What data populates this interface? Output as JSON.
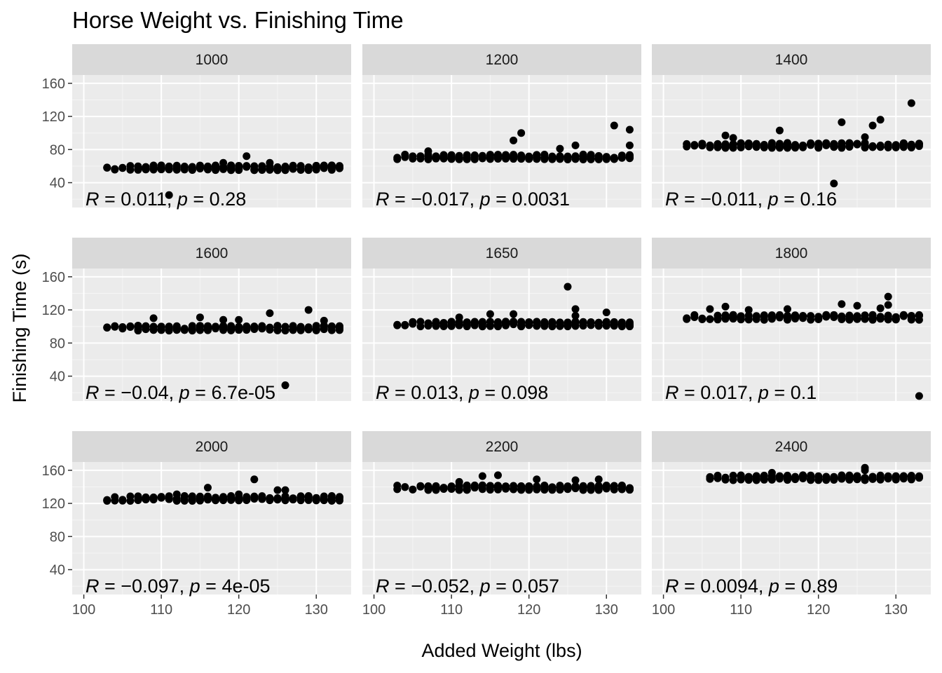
{
  "chart_data": {
    "type": "scatter",
    "title": "Horse Weight vs. Finishing Time",
    "xlabel": "Added Weight (lbs)",
    "ylabel": "Finishing Time (s)",
    "xlim": [
      98.5,
      134.5
    ],
    "ylim": [
      10,
      170
    ],
    "x_ticks": [
      100,
      110,
      120,
      130
    ],
    "y_ticks": [
      40,
      80,
      120,
      160
    ],
    "grid": true,
    "facet_layout": "3x3 grid, one panel per race distance",
    "point_color": "#000000",
    "panel_background": "#ebebeb",
    "strip_background": "#d9d9d9",
    "panels": [
      {
        "label": "1000",
        "baseline": 57,
        "x_range": [
          103,
          133
        ],
        "annotation": {
          "r": "0.011",
          "p": "0.28"
        },
        "outliers": [
          [
            111,
            25
          ],
          [
            118,
            64
          ],
          [
            121,
            72
          ],
          [
            124,
            64
          ]
        ]
      },
      {
        "label": "1200",
        "baseline": 70,
        "x_range": [
          103,
          133
        ],
        "annotation": {
          "r": "−0.017",
          "p": "0.0031"
        },
        "outliers": [
          [
            107,
            78
          ],
          [
            118,
            91
          ],
          [
            119,
            100
          ],
          [
            124,
            81
          ],
          [
            126,
            85
          ],
          [
            131,
            109
          ],
          [
            133,
            104
          ],
          [
            133,
            85
          ]
        ]
      },
      {
        "label": "1400",
        "baseline": 84,
        "x_range": [
          103,
          133
        ],
        "annotation": {
          "r": "−0.011",
          "p": "0.16"
        },
        "outliers": [
          [
            108,
            97
          ],
          [
            109,
            94
          ],
          [
            115,
            103
          ],
          [
            122,
            39
          ],
          [
            123,
            113
          ],
          [
            127,
            109
          ],
          [
            128,
            116
          ],
          [
            132,
            136
          ],
          [
            126,
            95
          ]
        ]
      },
      {
        "label": "1600",
        "baseline": 97,
        "x_range": [
          103,
          133
        ],
        "annotation": {
          "r": "−0.04",
          "p": "6.7e-05"
        },
        "outliers": [
          [
            109,
            110
          ],
          [
            115,
            111
          ],
          [
            118,
            108
          ],
          [
            120,
            108
          ],
          [
            124,
            116
          ],
          [
            126,
            29
          ],
          [
            129,
            120
          ],
          [
            131,
            107
          ]
        ]
      },
      {
        "label": "1650",
        "baseline": 102,
        "x_range": [
          103,
          133
        ],
        "annotation": {
          "r": "0.013",
          "p": "0.098"
        },
        "outliers": [
          [
            111,
            111
          ],
          [
            115,
            115
          ],
          [
            118,
            115
          ],
          [
            125,
            148
          ],
          [
            126,
            121
          ],
          [
            130,
            117
          ],
          [
            126,
            113
          ]
        ]
      },
      {
        "label": "1800",
        "baseline": 110,
        "x_range": [
          103,
          133
        ],
        "annotation": {
          "r": "0.017",
          "p": "0.1"
        },
        "outliers": [
          [
            106,
            121
          ],
          [
            108,
            124
          ],
          [
            111,
            120
          ],
          [
            116,
            121
          ],
          [
            123,
            127
          ],
          [
            125,
            125
          ],
          [
            129,
            136
          ],
          [
            129,
            126
          ],
          [
            133,
            16
          ],
          [
            128,
            122
          ]
        ]
      },
      {
        "label": "2000",
        "baseline": 125,
        "x_range": [
          103,
          133
        ],
        "annotation": {
          "r": "−0.097",
          "p": "4e-05"
        },
        "outliers": [
          [
            103,
            123
          ],
          [
            116,
            139
          ],
          [
            122,
            149
          ],
          [
            120,
            131
          ],
          [
            125,
            136
          ],
          [
            126,
            136
          ],
          [
            112,
            131
          ]
        ]
      },
      {
        "label": "2200",
        "baseline": 138,
        "x_range": [
          103,
          133
        ],
        "annotation": {
          "r": "−0.052",
          "p": "0.057"
        },
        "outliers": [
          [
            114,
            153
          ],
          [
            116,
            154
          ],
          [
            121,
            149
          ],
          [
            126,
            148
          ],
          [
            129,
            149
          ],
          [
            111,
            146
          ]
        ]
      },
      {
        "label": "2400",
        "baseline": 150,
        "x_range": [
          106,
          133
        ],
        "annotation": {
          "r": "0.0094",
          "p": "0.89"
        },
        "outliers": [
          [
            106,
            150
          ],
          [
            114,
            157
          ],
          [
            126,
            163
          ],
          [
            126,
            160
          ],
          [
            118,
            154
          ]
        ]
      }
    ]
  }
}
